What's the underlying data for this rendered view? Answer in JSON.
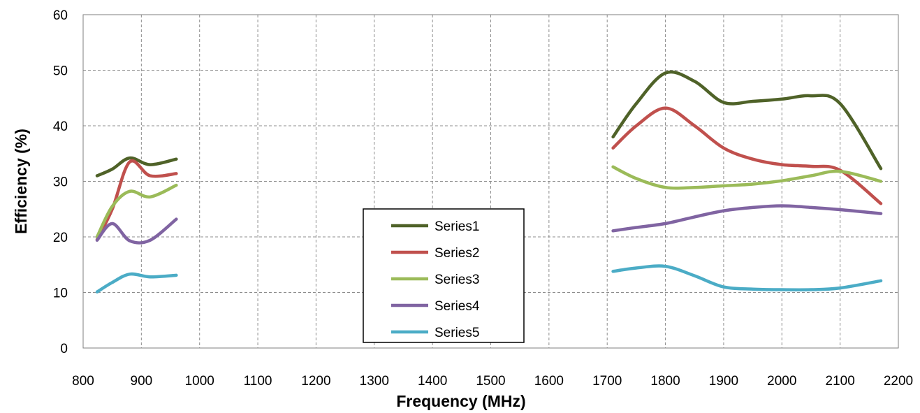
{
  "chart_data": {
    "type": "line",
    "title": "",
    "xlabel": "Frequency (MHz)",
    "ylabel": "Efficiency (%)",
    "xlim": [
      800,
      2200
    ],
    "ylim": [
      0,
      60
    ],
    "xticks": [
      800,
      900,
      1000,
      1100,
      1200,
      1300,
      1400,
      1500,
      1600,
      1700,
      1800,
      1900,
      2000,
      2100,
      2200
    ],
    "yticks": [
      0,
      10,
      20,
      30,
      40,
      50,
      60
    ],
    "grid": true,
    "legend_position": "center",
    "series": [
      {
        "name": "Series1",
        "color": "#4f6228",
        "segments": [
          [
            [
              824,
              31
            ],
            [
              850,
              32.2
            ],
            [
              880,
              34.2
            ],
            [
              915,
              33
            ],
            [
              960,
              34
            ]
          ],
          [
            [
              1710,
              38
            ],
            [
              1750,
              44
            ],
            [
              1800,
              49.5
            ],
            [
              1850,
              48
            ],
            [
              1900,
              44.2
            ],
            [
              1950,
              44.4
            ],
            [
              2000,
              44.8
            ],
            [
              2050,
              45.4
            ],
            [
              2100,
              44
            ],
            [
              2170,
              32.3
            ]
          ]
        ]
      },
      {
        "name": "Series2",
        "color": "#c0504d",
        "segments": [
          [
            [
              824,
              19.5
            ],
            [
              850,
              25
            ],
            [
              880,
              33.5
            ],
            [
              915,
              31
            ],
            [
              960,
              31.4
            ]
          ],
          [
            [
              1710,
              36
            ],
            [
              1750,
              40
            ],
            [
              1800,
              43.2
            ],
            [
              1850,
              40
            ],
            [
              1900,
              36
            ],
            [
              1950,
              34
            ],
            [
              2000,
              33
            ],
            [
              2050,
              32.7
            ],
            [
              2100,
              32
            ],
            [
              2170,
              26
            ]
          ]
        ]
      },
      {
        "name": "Series3",
        "color": "#9bbb59",
        "segments": [
          [
            [
              824,
              20
            ],
            [
              850,
              25.5
            ],
            [
              880,
              28.2
            ],
            [
              915,
              27.2
            ],
            [
              960,
              29.3
            ]
          ],
          [
            [
              1710,
              32.6
            ],
            [
              1750,
              30.5
            ],
            [
              1800,
              28.9
            ],
            [
              1850,
              28.9
            ],
            [
              1900,
              29.2
            ],
            [
              1950,
              29.5
            ],
            [
              2000,
              30.1
            ],
            [
              2050,
              31
            ],
            [
              2100,
              31.8
            ],
            [
              2170,
              30
            ]
          ]
        ]
      },
      {
        "name": "Series4",
        "color": "#8064a2",
        "segments": [
          [
            [
              824,
              19.4
            ],
            [
              850,
              22.4
            ],
            [
              880,
              19.3
            ],
            [
              915,
              19.4
            ],
            [
              960,
              23.2
            ]
          ],
          [
            [
              1710,
              21.1
            ],
            [
              1750,
              21.7
            ],
            [
              1800,
              22.4
            ],
            [
              1850,
              23.6
            ],
            [
              1900,
              24.7
            ],
            [
              1950,
              25.3
            ],
            [
              2000,
              25.6
            ],
            [
              2050,
              25.3
            ],
            [
              2100,
              24.9
            ],
            [
              2170,
              24.2
            ]
          ]
        ]
      },
      {
        "name": "Series5",
        "color": "#4bacc6",
        "segments": [
          [
            [
              824,
              10.1
            ],
            [
              850,
              11.8
            ],
            [
              880,
              13.3
            ],
            [
              915,
              12.8
            ],
            [
              960,
              13.1
            ]
          ],
          [
            [
              1710,
              13.8
            ],
            [
              1750,
              14.4
            ],
            [
              1800,
              14.7
            ],
            [
              1850,
              13
            ],
            [
              1900,
              11
            ],
            [
              1950,
              10.6
            ],
            [
              2000,
              10.5
            ],
            [
              2050,
              10.5
            ],
            [
              2100,
              10.8
            ],
            [
              2170,
              12.1
            ]
          ]
        ]
      }
    ]
  }
}
